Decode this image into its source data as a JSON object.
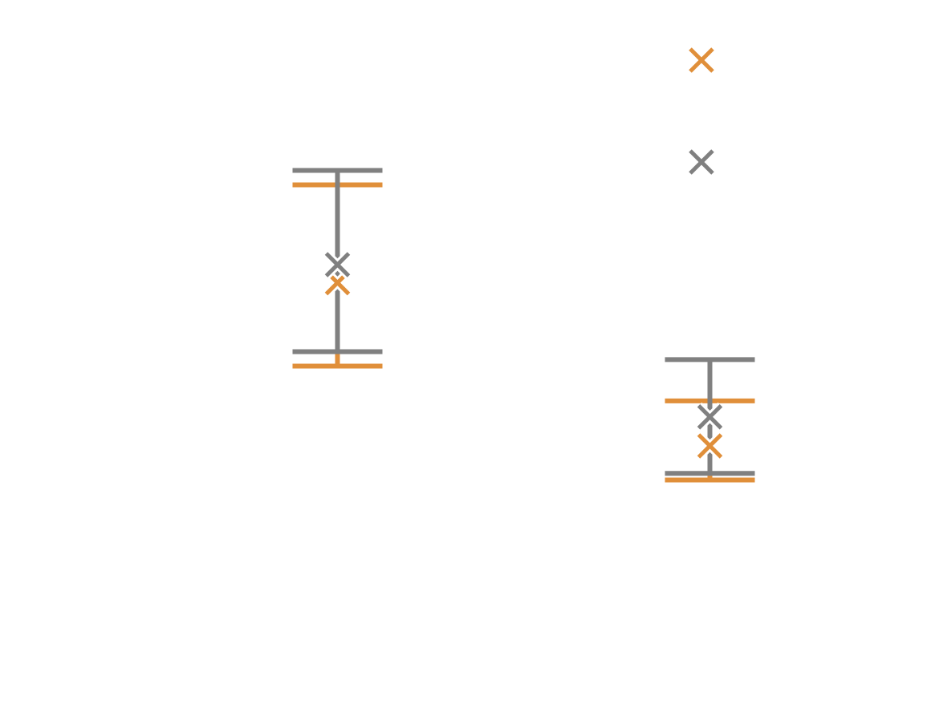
{
  "chart_data": {
    "type": "scatter",
    "title": "",
    "xlabel": "",
    "ylabel": "",
    "xlim": [
      0,
      1
    ],
    "ylim": [
      0,
      1
    ],
    "grid": false,
    "axes_visible": false,
    "legend": {
      "placement": "top-right",
      "entries": [
        {
          "marker": "x-marker",
          "color": "#e08f3a",
          "label": ""
        },
        {
          "marker": "x-marker",
          "color": "#808080",
          "label": ""
        }
      ]
    },
    "series": [
      {
        "color": "#e08f3a",
        "marker": "x-marker",
        "points": [
          {
            "x": 0.3625,
            "y": 0.61,
            "lower": 0.495,
            "upper": 0.745
          },
          {
            "x": 0.7625,
            "y": 0.385,
            "lower": 0.338,
            "upper": 0.447
          }
        ]
      },
      {
        "color": "#808080",
        "marker": "x-marker",
        "points": [
          {
            "x": 0.3625,
            "y": 0.635,
            "lower": 0.515,
            "upper": 0.765
          },
          {
            "x": 0.7625,
            "y": 0.425,
            "lower": 0.347,
            "upper": 0.504
          }
        ]
      }
    ]
  }
}
